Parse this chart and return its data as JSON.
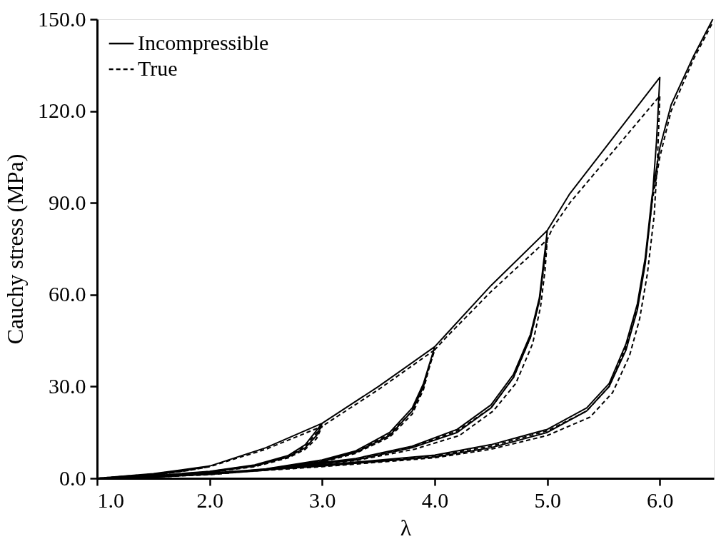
{
  "chart_data": {
    "type": "line",
    "xlabel": "λ",
    "ylabel": "Cauchy stress (MPa)",
    "xlim": [
      1.0,
      6.48
    ],
    "ylim": [
      0,
      150
    ],
    "xticks": [
      {
        "value": 1,
        "label": "1.0"
      },
      {
        "value": 2,
        "label": "2.0"
      },
      {
        "value": 3,
        "label": "3.0"
      },
      {
        "value": 4,
        "label": "4.0"
      },
      {
        "value": 5,
        "label": "5.0"
      },
      {
        "value": 6,
        "label": "6.0"
      }
    ],
    "yticks": [
      {
        "value": 0,
        "label": "0.0"
      },
      {
        "value": 30,
        "label": "30.0"
      },
      {
        "value": 60,
        "label": "60.0"
      },
      {
        "value": 90,
        "label": "90.0"
      },
      {
        "value": 120,
        "label": "120.0"
      },
      {
        "value": 150,
        "label": "150.0"
      }
    ],
    "legend": "top left",
    "grid": false,
    "marker": "none",
    "series": [
      {
        "name": "Incompressible",
        "color": "#000000",
        "line_style": "solid",
        "x": [
          1,
          1.5,
          2,
          1.8,
          1.5,
          1.2,
          1,
          1.5,
          1.8,
          2,
          2.5,
          3,
          2.95,
          2.85,
          2.7,
          2.4,
          2,
          1.5,
          1,
          1.5,
          2,
          2.4,
          2.7,
          2.85,
          3,
          3.5,
          4,
          3.95,
          3.9,
          3.8,
          3.6,
          3.3,
          3,
          2.5,
          2,
          1.5,
          1,
          1.5,
          2,
          2.5,
          3,
          3.3,
          3.6,
          3.8,
          3.9,
          4,
          4.1,
          4.5,
          5,
          4.97,
          4.93,
          4.85,
          4.7,
          4.5,
          4.2,
          3.8,
          3.3,
          2.5,
          1.5,
          1,
          1.5,
          2.5,
          3.3,
          3.8,
          4.2,
          4.5,
          4.7,
          4.85,
          4.93,
          5,
          5.05,
          5.2,
          6,
          5.97,
          5.93,
          5.87,
          5.8,
          5.7,
          5.55,
          5.35,
          5,
          4.5,
          4,
          3,
          2,
          1,
          2,
          3,
          4,
          4.5,
          5,
          5.35,
          5.55,
          5.7,
          5.8,
          5.87,
          5.93,
          6,
          6.1,
          6.3,
          6.47
        ],
        "values": [
          0,
          1.5,
          4,
          2.6,
          1.1,
          0.3,
          0,
          1.2,
          2.6,
          4,
          10,
          18,
          14,
          10,
          7,
          4,
          2,
          0.7,
          0,
          0.8,
          2.3,
          4.4,
          7.5,
          11,
          18,
          30,
          43,
          37,
          30,
          22,
          14,
          8.5,
          5.5,
          2.8,
          1.3,
          0.4,
          0,
          0.5,
          1.5,
          3.1,
          6,
          9,
          15,
          23,
          31,
          43,
          47,
          63,
          81,
          70,
          58,
          46,
          33,
          23,
          15,
          10,
          6,
          2.7,
          0.4,
          0,
          0.5,
          3,
          6.5,
          10.5,
          16,
          24,
          34,
          47,
          59,
          81,
          84,
          93,
          131,
          110,
          90,
          70,
          55,
          42,
          30,
          22,
          15,
          10,
          7,
          4,
          1.5,
          0,
          1.7,
          4.3,
          7.6,
          11,
          16,
          23,
          31,
          44,
          57,
          72,
          92,
          108,
          122,
          138,
          150
        ]
      },
      {
        "name": "True",
        "color": "#000000",
        "line_style": "dashed",
        "x": [
          1,
          1.5,
          2,
          1.8,
          1.5,
          1.2,
          1,
          1.5,
          1.8,
          2,
          2.5,
          3,
          2.95,
          2.85,
          2.7,
          2.4,
          2,
          1.5,
          1,
          1.5,
          2,
          2.4,
          2.7,
          2.85,
          3,
          3.5,
          4,
          3.95,
          3.9,
          3.8,
          3.6,
          3.3,
          3,
          2.5,
          2,
          1.5,
          1,
          1.5,
          2,
          2.5,
          3,
          3.3,
          3.6,
          3.8,
          3.9,
          4,
          4.1,
          4.5,
          5,
          4.98,
          4.94,
          4.87,
          4.72,
          4.52,
          4.22,
          3.82,
          3.3,
          2.5,
          1.5,
          1,
          1.5,
          2.5,
          3.3,
          3.8,
          4.2,
          4.5,
          4.7,
          4.85,
          4.93,
          5,
          5.05,
          5.2,
          6,
          5.98,
          5.95,
          5.89,
          5.82,
          5.73,
          5.58,
          5.38,
          5,
          4.5,
          4,
          3,
          2,
          1,
          2,
          3,
          4,
          4.5,
          5,
          5.35,
          5.55,
          5.7,
          5.8,
          5.87,
          5.93,
          6,
          6.1,
          6.3,
          6.47
        ],
        "values": [
          0,
          1.4,
          3.8,
          2.5,
          1.0,
          0.3,
          0,
          1.1,
          2.5,
          3.8,
          9.5,
          17,
          13,
          9.5,
          6.7,
          3.8,
          1.9,
          0.6,
          0,
          0.7,
          2.2,
          4.2,
          7.2,
          10.5,
          17,
          29,
          42,
          36,
          29,
          21,
          13.5,
          8.2,
          5.3,
          2.7,
          1.2,
          0.4,
          0,
          0.5,
          1.4,
          3,
          5.8,
          8.7,
          14.5,
          22,
          30,
          42,
          46,
          61,
          78,
          68,
          56,
          44,
          31,
          22,
          14,
          9.5,
          5.8,
          2.6,
          0.4,
          0,
          0.5,
          2.9,
          6.3,
          10.2,
          15.5,
          23,
          33,
          46,
          58,
          78,
          82,
          90,
          125,
          105,
          86,
          67,
          52,
          40,
          28,
          20,
          14,
          9.5,
          6.7,
          3.8,
          1.4,
          0,
          1.6,
          4.1,
          7.3,
          10.5,
          15.5,
          22,
          30,
          43,
          56,
          71,
          90,
          105,
          120,
          137,
          149
        ]
      }
    ]
  }
}
